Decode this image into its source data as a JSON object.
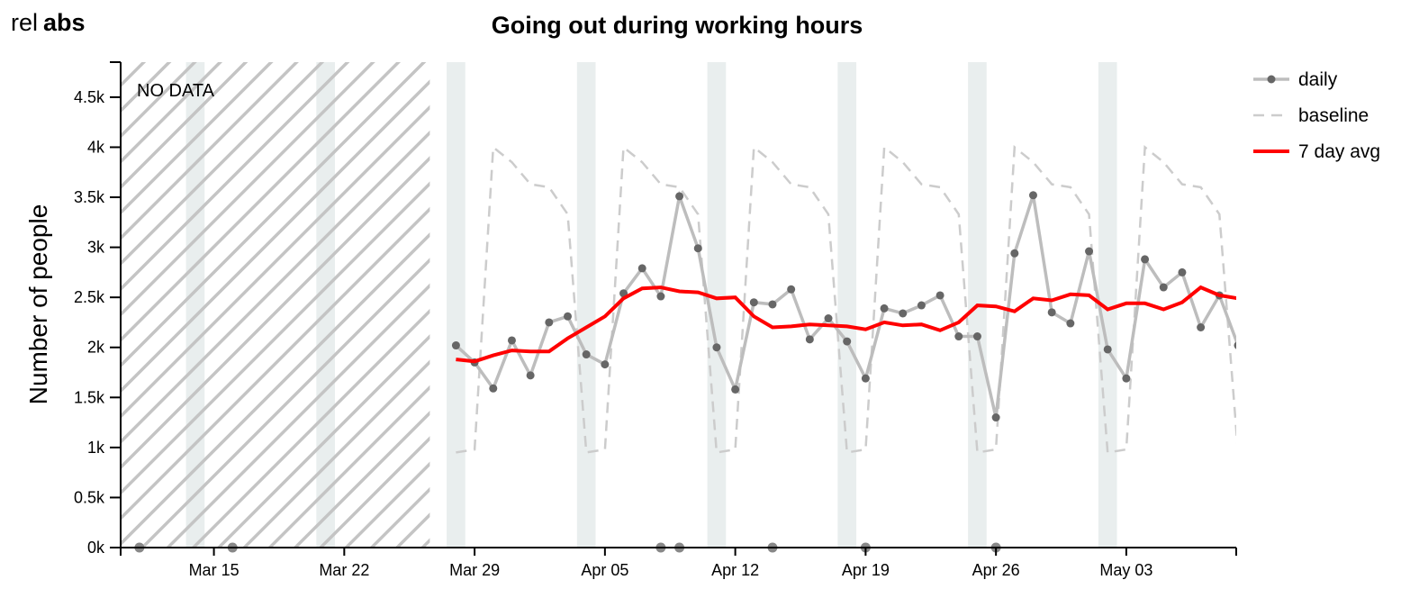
{
  "toggle": {
    "rel_label": "rel",
    "abs_label": "abs",
    "active": "abs"
  },
  "chart_data": {
    "type": "line",
    "title": "Going out during working hours",
    "xlabel": "",
    "ylabel": "Number of people",
    "ylim": [
      0,
      4850
    ],
    "xlim": [
      "2020-03-10",
      "2020-05-09"
    ],
    "x_ticks": [
      {
        "date": "2020-03-15",
        "label": "Mar 15"
      },
      {
        "date": "2020-03-22",
        "label": "Mar 22"
      },
      {
        "date": "2020-03-29",
        "label": "Mar 29"
      },
      {
        "date": "2020-04-05",
        "label": "Apr 05"
      },
      {
        "date": "2020-04-12",
        "label": "Apr 12"
      },
      {
        "date": "2020-04-19",
        "label": "Apr 19"
      },
      {
        "date": "2020-04-26",
        "label": "Apr 26"
      },
      {
        "date": "2020-05-03",
        "label": "May 03"
      }
    ],
    "y_ticks": [
      {
        "value": 0,
        "label": "0k"
      },
      {
        "value": 500,
        "label": "0.5k"
      },
      {
        "value": 1000,
        "label": "1k"
      },
      {
        "value": 1500,
        "label": "1.5k"
      },
      {
        "value": 2000,
        "label": "2k"
      },
      {
        "value": 2500,
        "label": "2.5k"
      },
      {
        "value": 3000,
        "label": "3k"
      },
      {
        "value": 3500,
        "label": "3.5k"
      },
      {
        "value": 4000,
        "label": "4k"
      },
      {
        "value": 4500,
        "label": "4.5k"
      }
    ],
    "no_data": {
      "label": "NO DATA",
      "from": "2020-03-10",
      "to": "2020-03-27"
    },
    "weekends": [
      [
        "2020-03-13",
        "2020-03-15"
      ],
      [
        "2020-03-20",
        "2020-03-22"
      ],
      [
        "2020-03-27",
        "2020-03-29"
      ],
      [
        "2020-04-03",
        "2020-04-05"
      ],
      [
        "2020-04-10",
        "2020-04-12"
      ],
      [
        "2020-04-17",
        "2020-04-19"
      ],
      [
        "2020-04-24",
        "2020-04-26"
      ],
      [
        "2020-05-01",
        "2020-05-03"
      ],
      [
        "2020-05-08",
        "2020-05-09"
      ]
    ],
    "legend": {
      "position": "top-right"
    },
    "series": [
      {
        "name": "daily",
        "style": "line-dots",
        "color": "#bdbdbd",
        "dot_color": "#666666",
        "points": [
          [
            "2020-03-28",
            2020
          ],
          [
            "2020-03-29",
            1850
          ],
          [
            "2020-03-30",
            1590
          ],
          [
            "2020-03-31",
            2070
          ],
          [
            "2020-04-01",
            1720
          ],
          [
            "2020-04-02",
            2250
          ],
          [
            "2020-04-03",
            2310
          ],
          [
            "2020-04-04",
            1930
          ],
          [
            "2020-04-05",
            1830
          ],
          [
            "2020-04-06",
            2540
          ],
          [
            "2020-04-07",
            2790
          ],
          [
            "2020-04-08",
            2510
          ],
          [
            "2020-04-09",
            3510
          ],
          [
            "2020-04-10",
            2990
          ],
          [
            "2020-04-11",
            2000
          ],
          [
            "2020-04-12",
            1580
          ],
          [
            "2020-04-13",
            2450
          ],
          [
            "2020-04-14",
            2430
          ],
          [
            "2020-04-15",
            2580
          ],
          [
            "2020-04-16",
            2080
          ],
          [
            "2020-04-17",
            2290
          ],
          [
            "2020-04-18",
            2060
          ],
          [
            "2020-04-19",
            1690
          ],
          [
            "2020-04-20",
            2390
          ],
          [
            "2020-04-21",
            2340
          ],
          [
            "2020-04-22",
            2420
          ],
          [
            "2020-04-23",
            2520
          ],
          [
            "2020-04-24",
            2110
          ],
          [
            "2020-04-25",
            2110
          ],
          [
            "2020-04-26",
            1300
          ],
          [
            "2020-04-27",
            2940
          ],
          [
            "2020-04-28",
            3520
          ],
          [
            "2020-04-29",
            2350
          ],
          [
            "2020-04-30",
            2240
          ],
          [
            "2020-05-01",
            2960
          ],
          [
            "2020-05-02",
            1980
          ],
          [
            "2020-05-03",
            1690
          ],
          [
            "2020-05-04",
            2880
          ],
          [
            "2020-05-05",
            2600
          ],
          [
            "2020-05-06",
            2750
          ],
          [
            "2020-05-07",
            2200
          ],
          [
            "2020-05-08",
            2520
          ],
          [
            "2020-05-09",
            2020
          ]
        ],
        "zero_markers": [
          "2020-03-11",
          "2020-03-16",
          "2020-04-08",
          "2020-04-09",
          "2020-04-14",
          "2020-04-19",
          "2020-04-26"
        ]
      },
      {
        "name": "baseline",
        "style": "dashed",
        "color": "#cccccc",
        "points": [
          [
            "2020-03-28",
            950
          ],
          [
            "2020-03-29",
            980
          ],
          [
            "2020-03-30",
            4000
          ],
          [
            "2020-03-31",
            3850
          ],
          [
            "2020-04-01",
            3630
          ],
          [
            "2020-04-02",
            3600
          ],
          [
            "2020-04-03",
            3330
          ],
          [
            "2020-04-04",
            950
          ],
          [
            "2020-04-05",
            980
          ],
          [
            "2020-04-06",
            4000
          ],
          [
            "2020-04-07",
            3850
          ],
          [
            "2020-04-08",
            3630
          ],
          [
            "2020-04-09",
            3600
          ],
          [
            "2020-04-10",
            3330
          ],
          [
            "2020-04-11",
            950
          ],
          [
            "2020-04-12",
            980
          ],
          [
            "2020-04-13",
            4000
          ],
          [
            "2020-04-14",
            3850
          ],
          [
            "2020-04-15",
            3630
          ],
          [
            "2020-04-16",
            3600
          ],
          [
            "2020-04-17",
            3330
          ],
          [
            "2020-04-18",
            950
          ],
          [
            "2020-04-19",
            980
          ],
          [
            "2020-04-20",
            4000
          ],
          [
            "2020-04-21",
            3850
          ],
          [
            "2020-04-22",
            3630
          ],
          [
            "2020-04-23",
            3600
          ],
          [
            "2020-04-24",
            3330
          ],
          [
            "2020-04-25",
            950
          ],
          [
            "2020-04-26",
            980
          ],
          [
            "2020-04-27",
            4000
          ],
          [
            "2020-04-28",
            3850
          ],
          [
            "2020-04-29",
            3630
          ],
          [
            "2020-04-30",
            3600
          ],
          [
            "2020-05-01",
            3330
          ],
          [
            "2020-05-02",
            950
          ],
          [
            "2020-05-03",
            980
          ],
          [
            "2020-05-04",
            4000
          ],
          [
            "2020-05-05",
            3850
          ],
          [
            "2020-05-06",
            3630
          ],
          [
            "2020-05-07",
            3600
          ],
          [
            "2020-05-08",
            3330
          ],
          [
            "2020-05-09",
            950
          ]
        ]
      },
      {
        "name": "7 day avg",
        "style": "line",
        "color": "#ff0000",
        "points": [
          [
            "2020-03-28",
            1880
          ],
          [
            "2020-03-29",
            1860
          ],
          [
            "2020-03-30",
            1920
          ],
          [
            "2020-03-31",
            1970
          ],
          [
            "2020-04-01",
            1960
          ],
          [
            "2020-04-02",
            1960
          ],
          [
            "2020-04-03",
            2090
          ],
          [
            "2020-04-04",
            2200
          ],
          [
            "2020-04-05",
            2310
          ],
          [
            "2020-04-06",
            2490
          ],
          [
            "2020-04-07",
            2590
          ],
          [
            "2020-04-08",
            2600
          ],
          [
            "2020-04-09",
            2560
          ],
          [
            "2020-04-10",
            2550
          ],
          [
            "2020-04-11",
            2490
          ],
          [
            "2020-04-12",
            2500
          ],
          [
            "2020-04-13",
            2310
          ],
          [
            "2020-04-14",
            2200
          ],
          [
            "2020-04-15",
            2210
          ],
          [
            "2020-04-16",
            2230
          ],
          [
            "2020-04-17",
            2220
          ],
          [
            "2020-04-18",
            2210
          ],
          [
            "2020-04-19",
            2180
          ],
          [
            "2020-04-20",
            2250
          ],
          [
            "2020-04-21",
            2220
          ],
          [
            "2020-04-22",
            2230
          ],
          [
            "2020-04-23",
            2170
          ],
          [
            "2020-04-24",
            2250
          ],
          [
            "2020-04-25",
            2420
          ],
          [
            "2020-04-26",
            2410
          ],
          [
            "2020-04-27",
            2360
          ],
          [
            "2020-04-28",
            2490
          ],
          [
            "2020-04-29",
            2470
          ],
          [
            "2020-04-30",
            2530
          ],
          [
            "2020-05-01",
            2520
          ],
          [
            "2020-05-02",
            2380
          ],
          [
            "2020-05-03",
            2440
          ],
          [
            "2020-05-04",
            2440
          ],
          [
            "2020-05-05",
            2380
          ],
          [
            "2020-05-06",
            2450
          ],
          [
            "2020-05-07",
            2600
          ],
          [
            "2020-05-08",
            2520
          ],
          [
            "2020-05-09",
            2490
          ]
        ]
      }
    ]
  }
}
